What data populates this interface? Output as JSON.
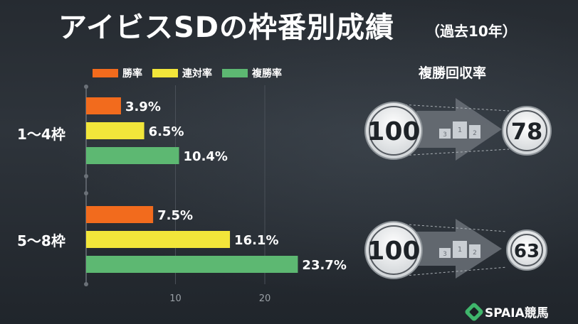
{
  "title": "アイビスSDの枠番別成績",
  "title_sub": "（過去10年）",
  "legend": [
    {
      "label": "勝率",
      "color": "#f26b1d"
    },
    {
      "label": "連対率",
      "color": "#f2e63a"
    },
    {
      "label": "複勝率",
      "color": "#5db872"
    }
  ],
  "roi_title": "複勝回収率",
  "roi": [
    {
      "base": "100",
      "value": "78"
    },
    {
      "base": "100",
      "value": "63"
    }
  ],
  "logo_text": "SPAIA競馬",
  "chart_data": {
    "type": "bar",
    "orientation": "horizontal",
    "categories": [
      "1〜4枠",
      "5〜8枠"
    ],
    "series": [
      {
        "name": "勝率",
        "color": "#f26b1d",
        "values": [
          3.9,
          7.5
        ],
        "labels": [
          "3.9%",
          "7.5%"
        ]
      },
      {
        "name": "連対率",
        "color": "#f2e63a",
        "values": [
          6.5,
          16.1
        ],
        "labels": [
          "6.5%",
          "16.1%"
        ]
      },
      {
        "name": "複勝率",
        "color": "#5db872",
        "values": [
          10.4,
          23.7
        ],
        "labels": [
          "10.4%",
          "23.7%"
        ]
      }
    ],
    "xlim": [
      0,
      25
    ],
    "xticks": [
      "10",
      "20"
    ],
    "grid": true,
    "legend": "top-left"
  }
}
